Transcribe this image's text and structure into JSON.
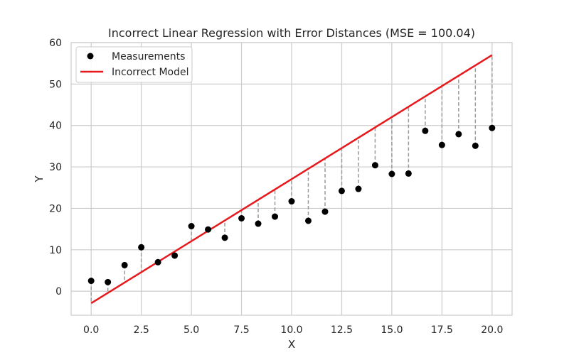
{
  "chart_data": {
    "type": "scatter",
    "title": "Incorrect Linear Regression with Error Distances (MSE = 100.04)",
    "xlabel": "X",
    "ylabel": "Y",
    "xlim": [
      -1.0,
      21.0
    ],
    "ylim": [
      -5.8,
      60.0
    ],
    "xticks": [
      0.0,
      2.5,
      5.0,
      7.5,
      10.0,
      12.5,
      15.0,
      17.5,
      20.0
    ],
    "xtick_labels": [
      "0.0",
      "2.5",
      "5.0",
      "7.5",
      "10.0",
      "12.5",
      "15.0",
      "17.5",
      "20.0"
    ],
    "yticks": [
      0,
      10,
      20,
      30,
      40,
      50,
      60
    ],
    "ytick_labels": [
      "0",
      "10",
      "20",
      "30",
      "40",
      "50",
      "60"
    ],
    "grid": true,
    "legend_position": "top-left",
    "series": [
      {
        "name": "Measurements",
        "kind": "scatter",
        "color": "#000000",
        "x": [
          0.0,
          0.833,
          1.667,
          2.5,
          3.333,
          4.167,
          5.0,
          5.833,
          6.667,
          7.5,
          8.333,
          9.167,
          10.0,
          10.833,
          11.667,
          12.5,
          13.333,
          14.167,
          15.0,
          15.833,
          16.667,
          17.5,
          18.333,
          19.167,
          20.0
        ],
        "y": [
          2.5,
          2.2,
          6.3,
          10.6,
          7.0,
          8.6,
          15.7,
          14.9,
          12.9,
          17.6,
          16.3,
          18.0,
          21.7,
          17.0,
          19.2,
          24.2,
          24.7,
          30.4,
          28.3,
          28.4,
          38.7,
          35.3,
          37.9,
          35.1,
          39.4
        ]
      },
      {
        "name": "Incorrect Model",
        "kind": "line",
        "color": "#e8191c",
        "x": [
          0.0,
          20.0
        ],
        "y": [
          -2.9,
          57.0
        ]
      }
    ],
    "error_lines": {
      "color": "#9a9a9a",
      "style": "dashed"
    }
  }
}
